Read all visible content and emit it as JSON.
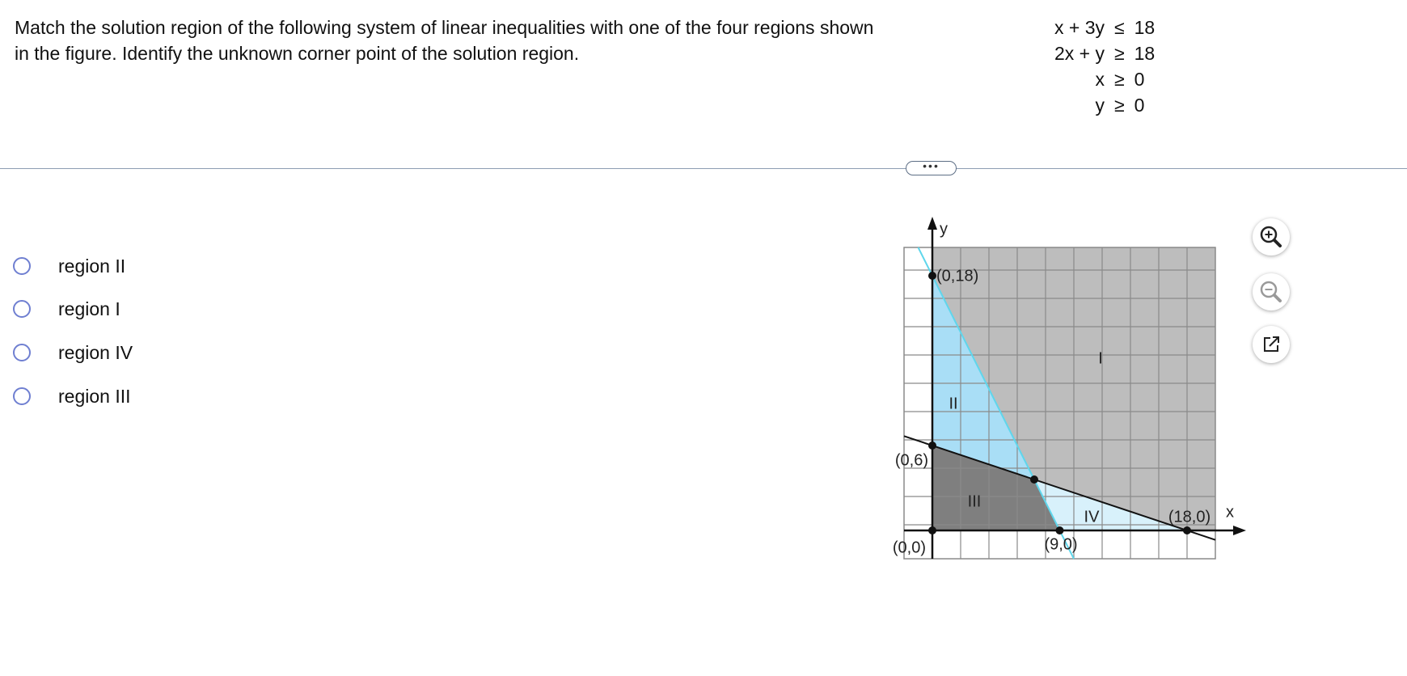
{
  "question": {
    "lines": [
      "Match the solution region of the following system of linear inequalities with one of the four regions shown",
      "in the figure. Identify the unknown corner point of the solution region."
    ],
    "inequalities": [
      {
        "lhs": "x + 3y",
        "op": "≤",
        "rhs": "18"
      },
      {
        "lhs": "2x + y",
        "op": "≥",
        "rhs": "18"
      },
      {
        "lhs": "x",
        "op": "≥",
        "rhs": "0"
      },
      {
        "lhs": "y",
        "op": "≥",
        "rhs": "0"
      }
    ]
  },
  "options": [
    "region II",
    "region I",
    "region IV",
    "region III"
  ],
  "figure": {
    "axis_labels": {
      "x": "x",
      "y": "y"
    },
    "point_labels": [
      "(0,18)",
      "(0,6)",
      "(0,0)",
      "(9,0)",
      "(18,0)"
    ],
    "region_labels": [
      "I",
      "II",
      "III",
      "IV"
    ]
  }
}
